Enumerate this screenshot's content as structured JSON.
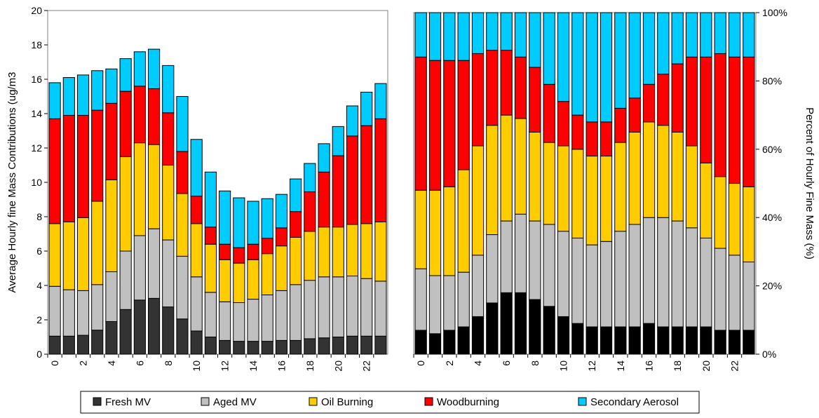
{
  "chart_data": [
    {
      "type": "stacked_bar",
      "y_label": "Average Hourly fine Mass Contributions (ug/m3",
      "categories": [
        0,
        null,
        2,
        null,
        4,
        null,
        6,
        null,
        8,
        null,
        10,
        null,
        12,
        null,
        14,
        null,
        16,
        null,
        18,
        null,
        20,
        null,
        22,
        null
      ],
      "ylim": [
        0,
        20
      ],
      "yticks": [
        0,
        2,
        4,
        6,
        8,
        10,
        12,
        14,
        16,
        18,
        20
      ],
      "series": [
        {
          "name": "Fresh MV",
          "color": "#333333",
          "values": [
            1.05,
            1.05,
            1.1,
            1.4,
            1.9,
            2.6,
            3.15,
            3.25,
            2.75,
            2.05,
            1.35,
            1.0,
            0.8,
            0.75,
            0.75,
            0.75,
            0.8,
            0.8,
            0.9,
            0.95,
            1.0,
            1.05,
            1.05,
            1.05
          ]
        },
        {
          "name": "Aged MV",
          "color": "#c0c0c0",
          "values": [
            2.9,
            2.7,
            2.6,
            2.65,
            2.9,
            3.4,
            3.75,
            4.05,
            3.9,
            3.65,
            3.15,
            2.6,
            2.25,
            2.25,
            2.45,
            2.7,
            2.9,
            3.25,
            3.4,
            3.55,
            3.5,
            3.5,
            3.35,
            3.2
          ]
        },
        {
          "name": "Oil Burning",
          "color": "#ffcc00",
          "values": [
            3.65,
            3.95,
            4.25,
            4.85,
            5.35,
            5.5,
            5.4,
            4.9,
            4.35,
            3.65,
            3.1,
            2.8,
            2.45,
            2.3,
            2.3,
            2.4,
            2.6,
            2.75,
            2.85,
            2.9,
            2.9,
            3.0,
            3.2,
            3.45
          ]
        },
        {
          "name": "Woodburning",
          "color": "#ff0000",
          "values": [
            6.1,
            6.2,
            5.95,
            5.3,
            4.45,
            3.8,
            3.3,
            3.25,
            3.05,
            2.45,
            1.6,
            1.0,
            0.9,
            0.9,
            0.9,
            0.9,
            1.05,
            1.5,
            2.3,
            3.2,
            4.15,
            5.15,
            5.7,
            6.0
          ]
        },
        {
          "name": "Secondary Aerosol",
          "color": "#00ccff",
          "values": [
            2.1,
            2.2,
            2.35,
            2.3,
            2.0,
            1.9,
            2.0,
            2.3,
            2.75,
            3.2,
            3.3,
            3.2,
            3.1,
            2.9,
            2.5,
            2.3,
            1.95,
            1.9,
            1.65,
            1.65,
            1.7,
            1.75,
            1.95,
            2.05
          ]
        }
      ]
    },
    {
      "type": "stacked_bar",
      "y_label": "Percent of Hourly Fine Mass (%)",
      "categories": [
        0,
        null,
        2,
        null,
        4,
        null,
        6,
        null,
        8,
        null,
        10,
        null,
        12,
        null,
        14,
        null,
        16,
        null,
        18,
        null,
        20,
        null,
        22,
        null
      ],
      "ylim": [
        0,
        100
      ],
      "yticks": [
        {
          "value": 0,
          "label": "0%"
        },
        {
          "value": 20,
          "label": "20%"
        },
        {
          "value": 40,
          "label": "40%"
        },
        {
          "value": 60,
          "label": "60%"
        },
        {
          "value": 80,
          "label": "80%"
        },
        {
          "value": 100,
          "label": "100%"
        }
      ],
      "series": [
        {
          "color": "#000000",
          "values": [
            7,
            6,
            7,
            8,
            11,
            15,
            18,
            18,
            16,
            14,
            11,
            9,
            8,
            8,
            8,
            8,
            9,
            8,
            8,
            8,
            8,
            7,
            7,
            7
          ]
        },
        {
          "color": "#c0c0c0",
          "values": [
            18,
            17,
            16,
            16,
            18,
            20,
            21,
            23,
            23,
            24,
            25,
            25,
            24,
            25,
            28,
            30,
            31,
            32,
            31,
            29,
            26,
            24,
            22,
            20
          ]
        },
        {
          "color": "#ffcc00",
          "values": [
            23,
            25,
            26,
            30,
            32,
            32,
            31,
            28,
            26,
            24,
            25,
            26,
            26,
            25,
            26,
            27,
            28,
            27,
            26,
            24,
            22,
            21,
            21,
            22
          ]
        },
        {
          "color": "#ff0000",
          "values": [
            39,
            38,
            37,
            32,
            27,
            22,
            19,
            18,
            19,
            17,
            13,
            10,
            10,
            10,
            10,
            10,
            11,
            15,
            20,
            26,
            31,
            36,
            37,
            38
          ]
        },
        {
          "color": "#00ccff",
          "values": [
            13,
            14,
            14,
            14,
            12,
            11,
            11,
            13,
            16,
            21,
            26,
            30,
            32,
            32,
            28,
            25,
            21,
            18,
            15,
            13,
            13,
            12,
            13,
            13
          ]
        }
      ]
    }
  ]
}
